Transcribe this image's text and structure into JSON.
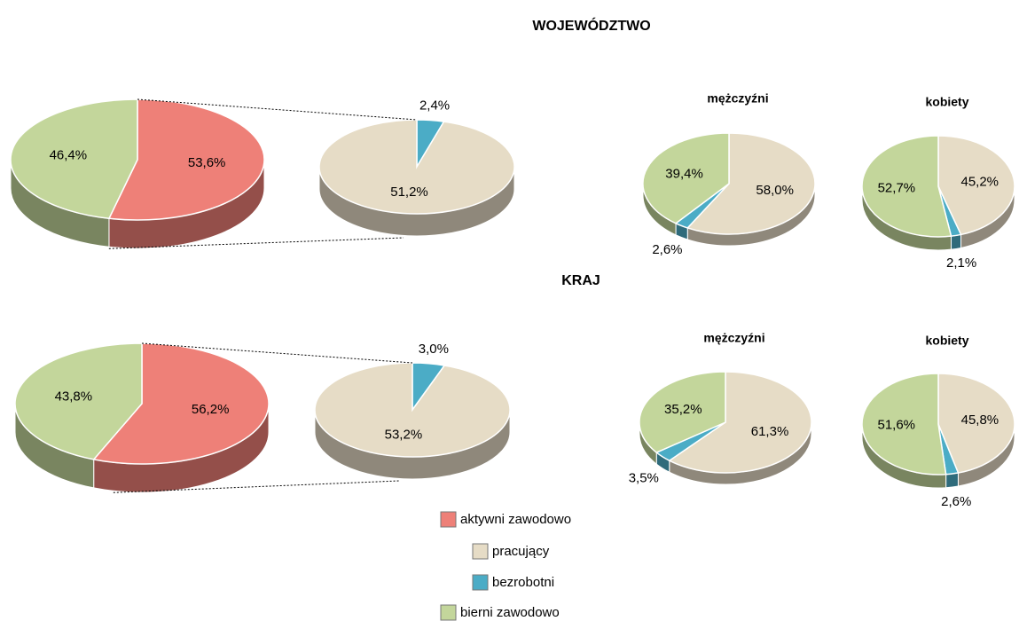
{
  "section_titles": [
    "WOJEWÓDZTWO",
    "KRAJ"
  ],
  "legend": {
    "entries": [
      {
        "name": "aktywni zawodowo",
        "color": "#ee8078"
      },
      {
        "name": "pracujący",
        "color": "#e6dcc6"
      },
      {
        "name": "bezrobotni",
        "color": "#4bacc6"
      },
      {
        "name": "bierni zawodowo",
        "color": "#c3d69b"
      }
    ]
  },
  "chart_data": [
    {
      "type": "pie",
      "categories": [
        "aktywni zawodowo",
        "bierni zawodowo"
      ],
      "values": [
        53.6,
        46.4
      ],
      "value_labels": [
        "53,6%",
        "46,4%"
      ],
      "colors": [
        "#ee8078",
        "#c3d69b"
      ]
    },
    {
      "type": "pie",
      "categories": [
        "bezrobotni",
        "pracujący"
      ],
      "values": [
        2.4,
        51.2
      ],
      "value_labels": [
        "2,4%",
        "51,2%"
      ],
      "colors": [
        "#4bacc6",
        "#e6dcc6"
      ]
    },
    {
      "type": "pie",
      "title": "mężczyźni",
      "categories": [
        "pracujący",
        "bezrobotni",
        "bierni zawodowo"
      ],
      "values": [
        58.0,
        2.6,
        39.4
      ],
      "value_labels": [
        "58,0%",
        "2,6%",
        "39,4%"
      ],
      "colors": [
        "#e6dcc6",
        "#4bacc6",
        "#c3d69b"
      ]
    },
    {
      "type": "pie",
      "title": "kobiety",
      "categories": [
        "pracujący",
        "bezrobotni",
        "bierni zawodowo"
      ],
      "values": [
        45.2,
        2.1,
        52.7
      ],
      "value_labels": [
        "45,2%",
        "2,1%",
        "52,7%"
      ],
      "colors": [
        "#e6dcc6",
        "#4bacc6",
        "#c3d69b"
      ]
    },
    {
      "type": "pie",
      "categories": [
        "aktywni zawodowo",
        "bierni zawodowo"
      ],
      "values": [
        56.2,
        43.8
      ],
      "value_labels": [
        "56,2%",
        "43,8%"
      ],
      "colors": [
        "#ee8078",
        "#c3d69b"
      ]
    },
    {
      "type": "pie",
      "categories": [
        "bezrobotni",
        "pracujący"
      ],
      "values": [
        3.0,
        53.2
      ],
      "value_labels": [
        "3,0%",
        "53,2%"
      ],
      "colors": [
        "#4bacc6",
        "#e6dcc6"
      ]
    },
    {
      "type": "pie",
      "title": "mężczyźni",
      "categories": [
        "pracujący",
        "bezrobotni",
        "bierni zawodowo"
      ],
      "values": [
        61.3,
        3.5,
        35.2
      ],
      "value_labels": [
        "61,3%",
        "3,5%",
        "35,2%"
      ],
      "colors": [
        "#e6dcc6",
        "#4bacc6",
        "#c3d69b"
      ]
    },
    {
      "type": "pie",
      "title": "kobiety",
      "categories": [
        "pracujący",
        "bezrobotni",
        "bierni zawodowo"
      ],
      "values": [
        45.8,
        2.6,
        51.6
      ],
      "value_labels": [
        "45,8%",
        "2,6%",
        "51,6%"
      ],
      "colors": [
        "#e6dcc6",
        "#4bacc6",
        "#c3d69b"
      ]
    }
  ]
}
